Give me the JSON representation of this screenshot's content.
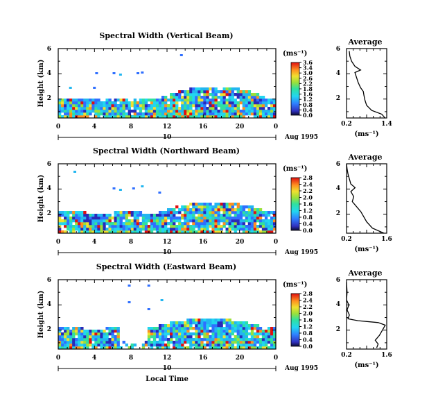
{
  "chart_data": [
    {
      "type": "heatmap",
      "title": "Spectral Width (Vertical Beam)",
      "ylabel": "Height (km)",
      "xlabel": "",
      "x_ticks": [
        "0",
        "4",
        "8",
        "12",
        "16",
        "20",
        "0"
      ],
      "y_ticks": [
        "2",
        "4",
        "6"
      ],
      "xlim": [
        0,
        24
      ],
      "ylim": [
        0.5,
        6.0
      ],
      "date_label": "10",
      "date_suffix": "Aug 1995",
      "colorbar": {
        "unit_label": "(ms⁻¹)",
        "ticks": [
          "3.6",
          "3.4",
          "3.0",
          "2.6",
          "2.2",
          "1.8",
          "1.6",
          "1.2",
          "0.8",
          "0.4",
          "0.0"
        ]
      },
      "profile": {
        "title": "Average",
        "xlabel": "(ms⁻¹)",
        "x_ticks": [
          "0.2",
          "1.4"
        ],
        "xlim": [
          0.2,
          1.4
        ],
        "y_ticks": [
          "2",
          "4",
          "6"
        ],
        "ylim": [
          0.5,
          6.0
        ],
        "points": [
          [
            1.35,
            0.5
          ],
          [
            1.25,
            0.8
          ],
          [
            0.95,
            1.1
          ],
          [
            0.8,
            1.5
          ],
          [
            0.75,
            1.9
          ],
          [
            0.72,
            2.3
          ],
          [
            0.7,
            2.6
          ],
          [
            0.62,
            2.9
          ],
          [
            0.55,
            3.3
          ],
          [
            0.5,
            3.7
          ],
          [
            0.45,
            4.1
          ],
          [
            0.62,
            4.3
          ],
          [
            0.45,
            4.6
          ],
          [
            0.35,
            5.0
          ],
          [
            0.3,
            5.4
          ],
          [
            0.28,
            5.8
          ]
        ]
      }
    },
    {
      "type": "heatmap",
      "title": "Spectral Width (Northward Beam)",
      "ylabel": "Height (km)",
      "xlabel": "",
      "x_ticks": [
        "0",
        "4",
        "8",
        "12",
        "16",
        "20",
        "0"
      ],
      "y_ticks": [
        "2",
        "4",
        "6"
      ],
      "xlim": [
        0,
        24
      ],
      "ylim": [
        0.5,
        6.0
      ],
      "date_label": "10",
      "date_suffix": "Aug 1995",
      "colorbar": {
        "unit_label": "(ms⁻¹)",
        "ticks": [
          "2.8",
          "2.4",
          "2.2",
          "2.0",
          "1.6",
          "1.2",
          "0.8",
          "0.4",
          "0.0"
        ]
      },
      "profile": {
        "title": "Average",
        "xlabel": "(ms⁻¹)",
        "x_ticks": [
          "0.2",
          "1.6"
        ],
        "xlim": [
          0.2,
          1.6
        ],
        "y_ticks": [
          "2",
          "4",
          "6"
        ],
        "ylim": [
          0.5,
          6.0
        ],
        "points": [
          [
            1.5,
            0.5
          ],
          [
            1.1,
            0.9
          ],
          [
            0.9,
            1.4
          ],
          [
            0.8,
            1.8
          ],
          [
            0.7,
            2.2
          ],
          [
            0.55,
            2.6
          ],
          [
            0.4,
            3.0
          ],
          [
            0.45,
            3.4
          ],
          [
            0.35,
            3.8
          ],
          [
            0.5,
            4.1
          ],
          [
            0.35,
            4.4
          ],
          [
            0.3,
            4.8
          ],
          [
            0.25,
            5.2
          ],
          [
            0.22,
            5.6
          ],
          [
            0.2,
            6.0
          ]
        ]
      }
    },
    {
      "type": "heatmap",
      "title": "Spectral Width (Eastward Beam)",
      "ylabel": "Height (km)",
      "xlabel": "Local Time",
      "x_ticks": [
        "0",
        "4",
        "8",
        "12",
        "16",
        "20",
        "0"
      ],
      "y_ticks": [
        "2",
        "4",
        "6"
      ],
      "xlim": [
        0,
        24
      ],
      "ylim": [
        0.5,
        6.0
      ],
      "date_label": "10",
      "date_suffix": "Aug 1995",
      "colorbar": {
        "unit_label": "(ms⁻¹)",
        "ticks": [
          "2.8",
          "2.4",
          "2.2",
          "2.0",
          "1.6",
          "1.2",
          "0.8",
          "0.4",
          "0.0"
        ]
      },
      "profile": {
        "title": "Average",
        "xlabel": "(ms⁻¹)",
        "x_ticks": [
          "0.2",
          "1.6"
        ],
        "xlim": [
          0.2,
          1.6
        ],
        "y_ticks": [
          "2",
          "4",
          "6"
        ],
        "ylim": [
          0.5,
          6.0
        ],
        "points": [
          [
            1.25,
            0.6
          ],
          [
            1.3,
            0.9
          ],
          [
            1.2,
            1.2
          ],
          [
            1.35,
            1.6
          ],
          [
            1.45,
            2.0
          ],
          [
            1.55,
            2.4
          ],
          [
            1.3,
            2.6
          ],
          [
            0.6,
            2.75
          ],
          [
            0.25,
            2.9
          ],
          [
            0.3,
            3.2
          ],
          [
            0.22,
            3.6
          ],
          [
            0.28,
            4.0
          ],
          [
            0.2,
            4.4
          ],
          [
            0.22,
            5.0
          ],
          [
            0.2,
            5.8
          ]
        ]
      }
    }
  ]
}
